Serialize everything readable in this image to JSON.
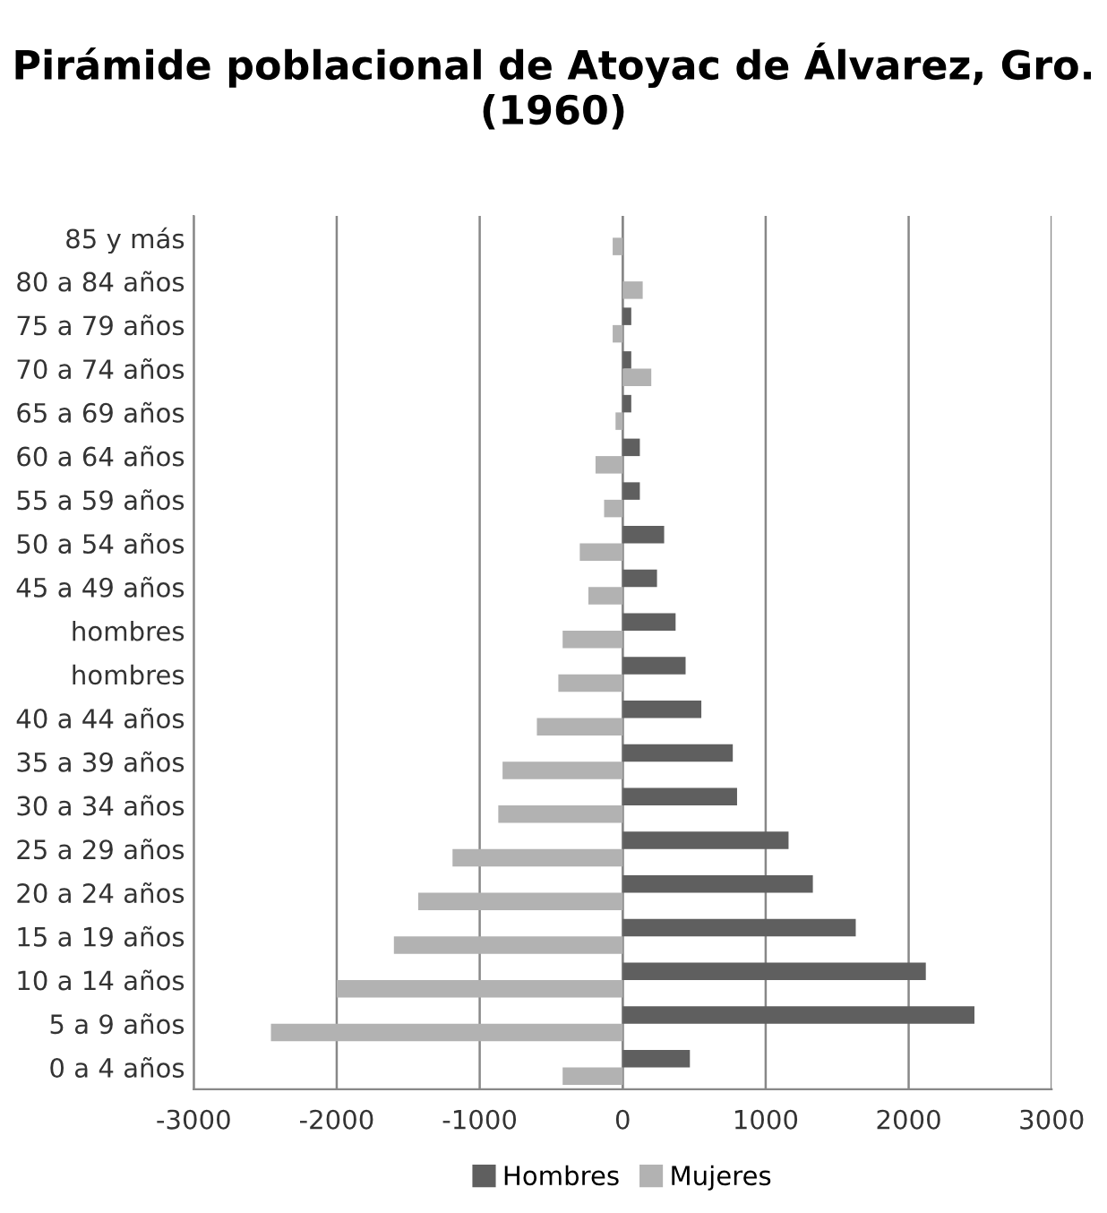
{
  "chart_data": {
    "type": "bar",
    "orientation": "horizontal",
    "title": "Pirámide poblacional de Atoyac de Álvarez, Gro. (1960)",
    "categories": [
      "85 y más",
      "80 a 84 años",
      "75 a 79 años",
      "70 a 74 años",
      "65 a 69 años",
      "60 a 64 años",
      "55 a 59 años",
      "50 a 54 años",
      "45 a 49 años",
      "hombres",
      "hombres",
      "40 a 44 años",
      "35 a 39 años",
      "30 a 34 años",
      "25 a 29 años",
      "20 a 24 años",
      "15 a 19 años",
      "10 a 14 años",
      "5 a 9 años",
      "0 a 4 años"
    ],
    "series": [
      {
        "name": "Hombres",
        "color": "#5f5f5f",
        "values": [
          0,
          0,
          60,
          60,
          60,
          120,
          120,
          290,
          240,
          370,
          440,
          550,
          770,
          800,
          1160,
          1330,
          1630,
          2120,
          2460,
          470
        ]
      },
      {
        "name": "Mujeres",
        "color": "#b2b2b2",
        "values": [
          -70,
          140,
          -70,
          200,
          -50,
          -190,
          -130,
          -300,
          -240,
          -420,
          -450,
          -600,
          -840,
          -870,
          -1190,
          -1430,
          -1600,
          -2000,
          -2460,
          -420
        ]
      }
    ],
    "xlim": [
      -3000,
      3000
    ],
    "xticks": [
      -3000,
      -2000,
      -1000,
      0,
      1000,
      2000,
      3000
    ],
    "grid": "x",
    "legend": "bottom"
  }
}
